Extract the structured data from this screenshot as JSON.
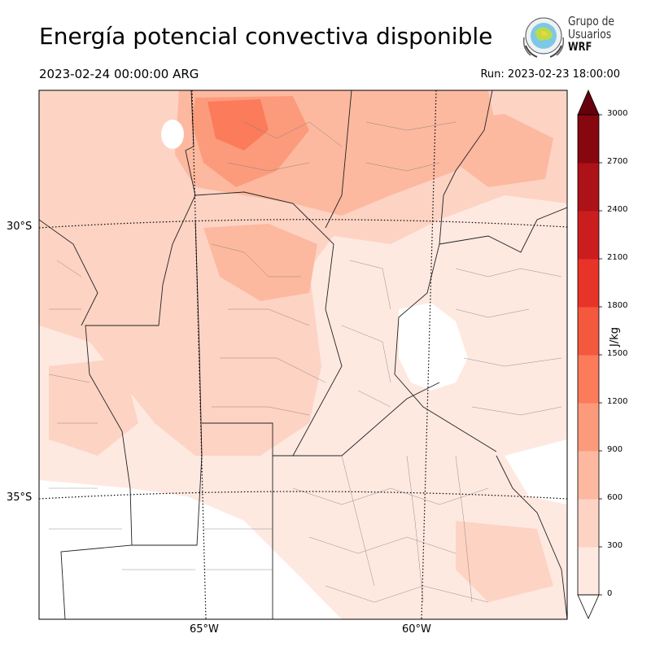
{
  "header": {
    "title": "Energía potencial convectiva disponible",
    "valid_time": "2023-02-24 00:00:00 ARG",
    "run_time": "Run: 2023-02-23 18:00:00"
  },
  "logo": {
    "line1": "Grupo de",
    "line2": "Usuarios",
    "line3": "WRF"
  },
  "map": {
    "lat_labels": [
      "30°S",
      "35°S"
    ],
    "lon_labels": [
      "65°W",
      "60°W"
    ]
  },
  "colorbar": {
    "units": "J/kg",
    "tick_labels": [
      "0",
      "300",
      "600",
      "900",
      "1200",
      "1500",
      "1800",
      "2100",
      "2400",
      "2700",
      "3000"
    ],
    "colors": [
      "#fee9e1",
      "#fdd3c4",
      "#fcb99f",
      "#fc9b7c",
      "#fb7b5b",
      "#f4583d",
      "#e83428",
      "#cc1d1e",
      "#ac1217",
      "#87070f"
    ],
    "extend_color": "#67000d"
  }
}
